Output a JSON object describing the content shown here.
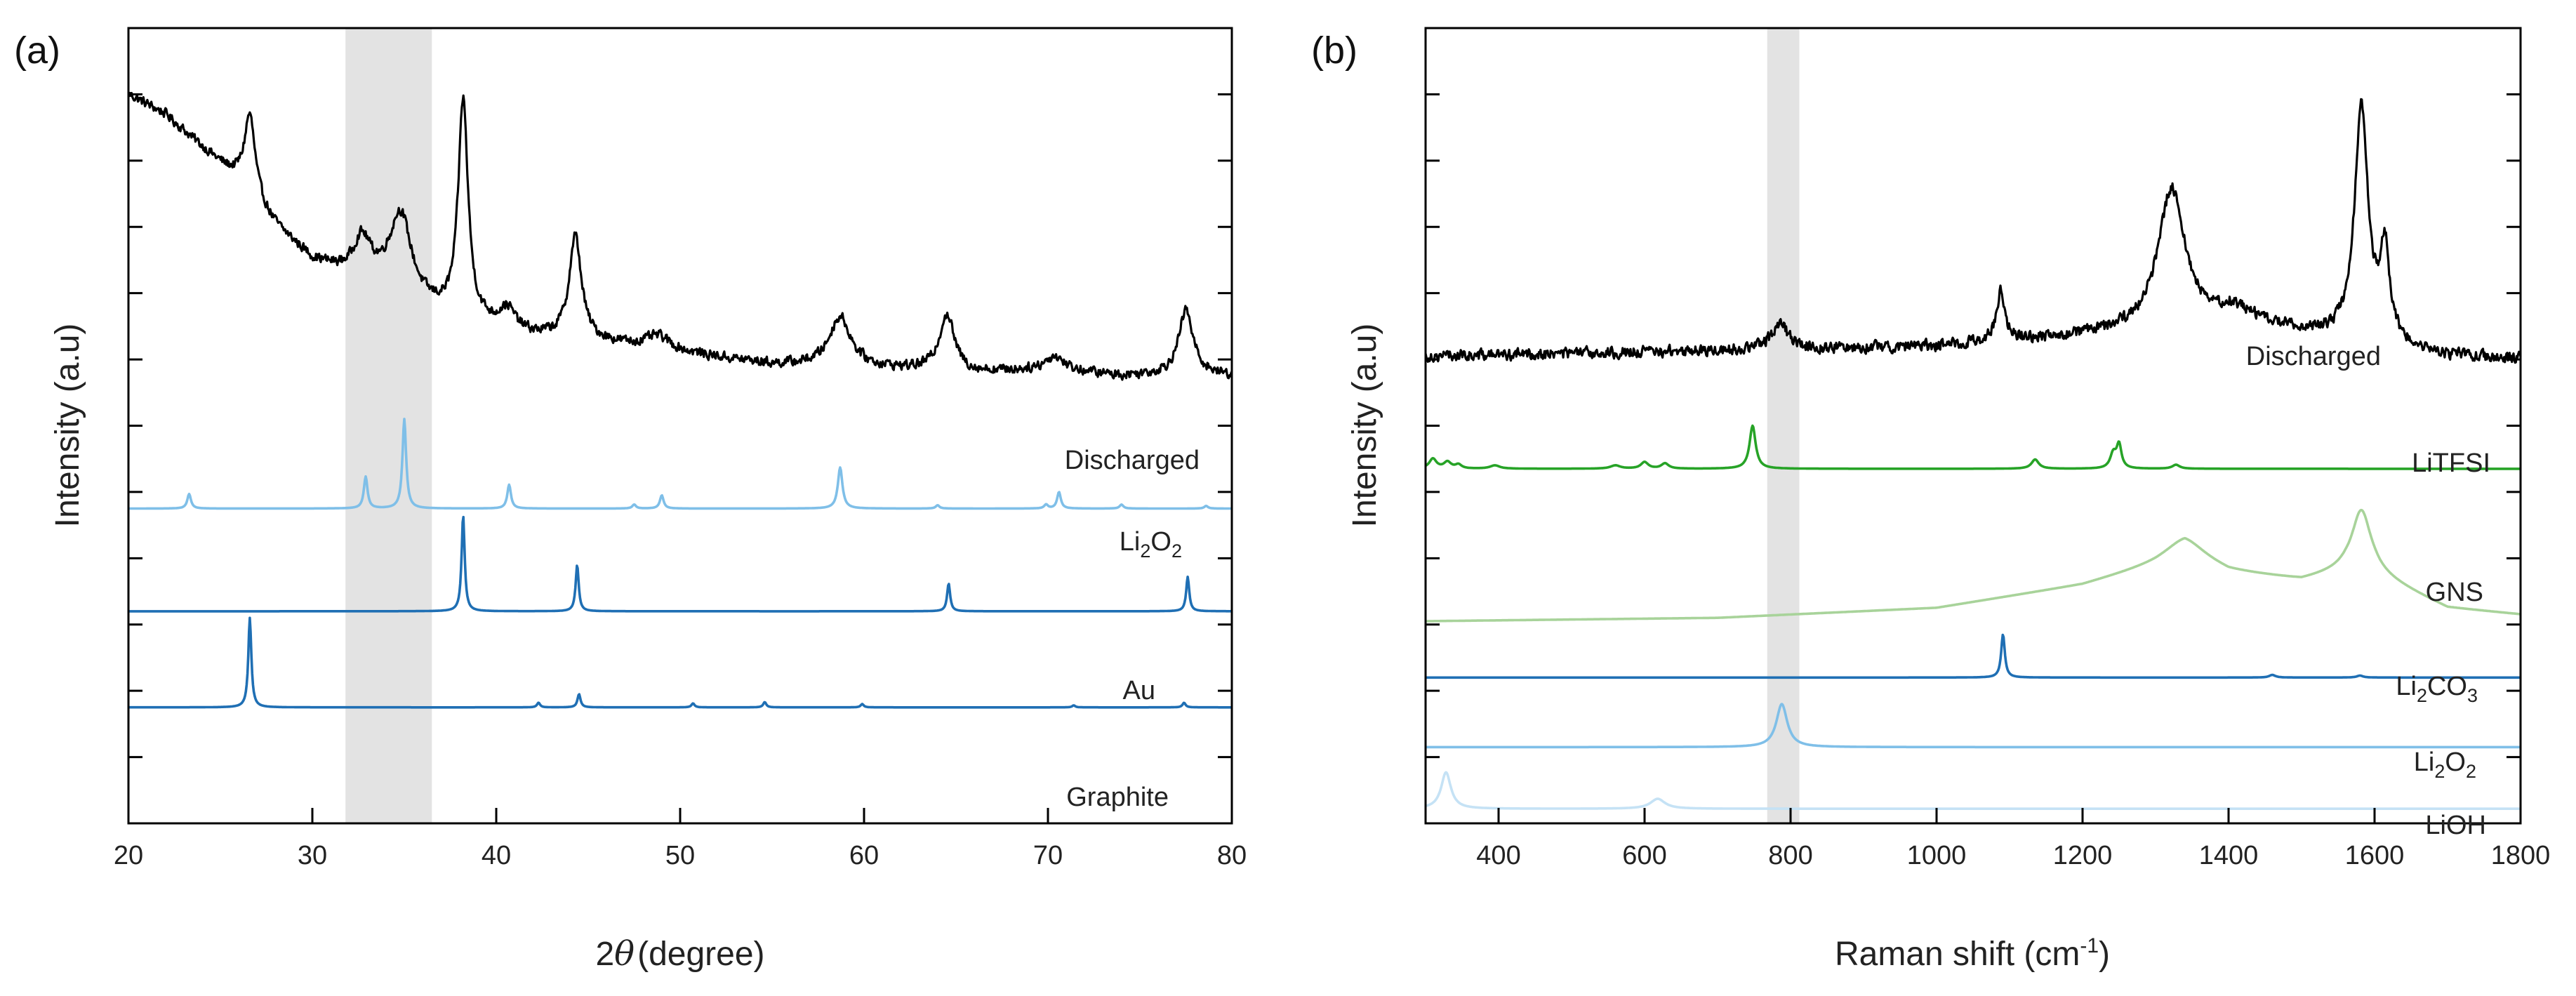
{
  "chart_data": [
    {
      "type": "line",
      "panel_label": "(a)",
      "xlabel": "2θ (degree)",
      "xlabel_theta": "θ",
      "xlabel_prefix": "2",
      "xlabel_suffix": "(degree)",
      "ylabel": "Intensity (a.u)",
      "xlim": [
        20,
        80
      ],
      "xticks": [
        20,
        30,
        40,
        50,
        60,
        70,
        80
      ],
      "yticks_count": 11,
      "highlight_band": [
        31.8,
        36.5
      ],
      "highlight_color": "#e3e3e3",
      "series": [
        {
          "name": "Discharged",
          "color": "#000000",
          "baseline": 6.8,
          "background": [
            [
              20,
              4.2
            ],
            [
              22,
              3.9
            ],
            [
              24,
              3.4
            ],
            [
              26,
              2.9
            ],
            [
              28,
              2.2
            ],
            [
              30,
              1.7
            ],
            [
              32,
              1.45
            ],
            [
              34,
              1.3
            ],
            [
              36,
              1.0
            ],
            [
              38,
              0.8
            ],
            [
              42,
              0.55
            ],
            [
              46,
              0.45
            ],
            [
              50,
              0.3
            ],
            [
              55,
              0.12
            ],
            [
              58,
              0.1
            ],
            [
              62,
              0.05
            ],
            [
              66,
              0.0
            ],
            [
              70,
              0.05
            ],
            [
              74,
              -0.05
            ],
            [
              78,
              0.0
            ],
            [
              80,
              -0.05
            ]
          ],
          "peaks": [
            {
              "x": 26.6,
              "height": 1.2,
              "width": 0.35
            },
            {
              "x": 32.7,
              "height": 0.6,
              "width": 0.6
            },
            {
              "x": 34.8,
              "height": 1.2,
              "width": 0.7
            },
            {
              "x": 38.2,
              "height": 3.3,
              "width": 0.32
            },
            {
              "x": 40.6,
              "height": 0.3,
              "width": 0.5
            },
            {
              "x": 44.3,
              "height": 1.55,
              "width": 0.4
            },
            {
              "x": 48.8,
              "height": 0.2,
              "width": 0.8
            },
            {
              "x": 58.7,
              "height": 0.75,
              "width": 0.7
            },
            {
              "x": 64.5,
              "height": 0.85,
              "width": 0.5
            },
            {
              "x": 70.4,
              "height": 0.2,
              "width": 0.6
            },
            {
              "x": 77.5,
              "height": 0.95,
              "width": 0.45
            }
          ],
          "noise": 0.06
        },
        {
          "name": "Li2O2",
          "label_main": "Li",
          "label_sub1": "2",
          "label_mid": "O",
          "label_sub2": "2",
          "color": "#7fbfe8",
          "baseline": 4.75,
          "peaks": [
            {
              "x": 23.3,
              "height": 0.22,
              "width": 0.12
            },
            {
              "x": 32.9,
              "height": 0.48,
              "width": 0.12
            },
            {
              "x": 35.0,
              "height": 1.35,
              "width": 0.12
            },
            {
              "x": 40.7,
              "height": 0.36,
              "width": 0.12
            },
            {
              "x": 47.5,
              "height": 0.06,
              "width": 0.12
            },
            {
              "x": 49.0,
              "height": 0.2,
              "width": 0.12
            },
            {
              "x": 58.7,
              "height": 0.62,
              "width": 0.15
            },
            {
              "x": 64.0,
              "height": 0.05,
              "width": 0.12
            },
            {
              "x": 69.9,
              "height": 0.06,
              "width": 0.12
            },
            {
              "x": 70.6,
              "height": 0.25,
              "width": 0.12
            },
            {
              "x": 74.0,
              "height": 0.06,
              "width": 0.12
            },
            {
              "x": 78.6,
              "height": 0.04,
              "width": 0.12
            }
          ],
          "noise": 0
        },
        {
          "name": "Au",
          "color": "#1f6fb4",
          "baseline": 3.2,
          "peaks": [
            {
              "x": 38.2,
              "height": 1.45,
              "width": 0.1
            },
            {
              "x": 44.4,
              "height": 0.7,
              "width": 0.1
            },
            {
              "x": 64.6,
              "height": 0.42,
              "width": 0.1
            },
            {
              "x": 77.6,
              "height": 0.52,
              "width": 0.1
            }
          ],
          "noise": 0
        },
        {
          "name": "Graphite",
          "color": "#1f6fb4",
          "baseline": 1.75,
          "peaks": [
            {
              "x": 26.6,
              "height": 1.35,
              "width": 0.1
            },
            {
              "x": 42.3,
              "height": 0.07,
              "width": 0.1
            },
            {
              "x": 44.5,
              "height": 0.2,
              "width": 0.1
            },
            {
              "x": 50.7,
              "height": 0.06,
              "width": 0.1
            },
            {
              "x": 54.6,
              "height": 0.08,
              "width": 0.1
            },
            {
              "x": 59.9,
              "height": 0.05,
              "width": 0.1
            },
            {
              "x": 71.4,
              "height": 0.03,
              "width": 0.1
            },
            {
              "x": 77.4,
              "height": 0.07,
              "width": 0.1
            }
          ],
          "noise": 0
        }
      ]
    },
    {
      "type": "line",
      "panel_label": "(b)",
      "xlabel": "Raman shift (cm-1)",
      "xlabel_main": "Raman shift (cm",
      "xlabel_sup": "-1",
      "xlabel_end": ")",
      "ylabel": "Intensity (a.u)",
      "xlim": [
        300,
        1800
      ],
      "xticks": [
        400,
        600,
        800,
        1000,
        1200,
        1400,
        1600,
        1800
      ],
      "yticks_count": 11,
      "highlight_band": [
        768,
        812
      ],
      "highlight_color": "#e3e3e3",
      "series": [
        {
          "name": "Discharged",
          "color": "#000000",
          "baseline": 7.05,
          "background": [
            [
              300,
              0.0
            ],
            [
              800,
              0.1
            ],
            [
              1000,
              0.15
            ],
            [
              1200,
              0.3
            ],
            [
              1400,
              0.5
            ],
            [
              1500,
              0.35
            ],
            [
              1700,
              0.0
            ],
            [
              1800,
              -0.05
            ]
          ],
          "peaks": [
            {
              "x": 785,
              "height": 0.4,
              "width": 14
            },
            {
              "x": 1088,
              "height": 0.75,
              "width": 7
            },
            {
              "x": 1322,
              "height": 2.1,
              "width": 22
            },
            {
              "x": 1410,
              "height": 0.2,
              "width": 30
            },
            {
              "x": 1582,
              "height": 3.55,
              "width": 11
            },
            {
              "x": 1614,
              "height": 1.35,
              "width": 8
            }
          ],
          "noise": 0.07
        },
        {
          "name": "LiTFSI",
          "color": "#27a327",
          "baseline": 5.35,
          "peaks": [
            {
              "x": 310,
              "height": 0.15,
              "width": 6
            },
            {
              "x": 330,
              "height": 0.1,
              "width": 6
            },
            {
              "x": 345,
              "height": 0.06,
              "width": 5
            },
            {
              "x": 395,
              "height": 0.05,
              "width": 8
            },
            {
              "x": 560,
              "height": 0.05,
              "width": 8
            },
            {
              "x": 600,
              "height": 0.1,
              "width": 6
            },
            {
              "x": 628,
              "height": 0.08,
              "width": 6
            },
            {
              "x": 748,
              "height": 0.65,
              "width": 5
            },
            {
              "x": 1135,
              "height": 0.14,
              "width": 6
            },
            {
              "x": 1242,
              "height": 0.22,
              "width": 5
            },
            {
              "x": 1250,
              "height": 0.35,
              "width": 4
            },
            {
              "x": 1328,
              "height": 0.06,
              "width": 6
            }
          ],
          "noise": 0
        },
        {
          "name": "GNS",
          "color": "#a8d39a",
          "baseline": 3.05,
          "background": [
            [
              300,
              0.0
            ],
            [
              700,
              0.05
            ],
            [
              1000,
              0.2
            ],
            [
              1200,
              0.55
            ],
            [
              1300,
              0.85
            ],
            [
              1340,
              1.0
            ],
            [
              1400,
              0.75
            ],
            [
              1500,
              0.62
            ],
            [
              1560,
              0.75
            ],
            [
              1600,
              0.7
            ],
            [
              1700,
              0.2
            ],
            [
              1800,
              0.1
            ]
          ],
          "peaks": [
            {
              "x": 1340,
              "height": 0.25,
              "width": 35
            },
            {
              "x": 1582,
              "height": 0.95,
              "width": 16
            }
          ],
          "noise": 0
        },
        {
          "name": "Li2CO3",
          "label_main": "Li",
          "label_sub1": "2",
          "label_mid": "CO",
          "label_sub2": "3",
          "color": "#1f6fb4",
          "baseline": 2.2,
          "peaks": [
            {
              "x": 1091,
              "height": 0.65,
              "width": 3
            },
            {
              "x": 1460,
              "height": 0.04,
              "width": 5
            },
            {
              "x": 1580,
              "height": 0.03,
              "width": 5
            }
          ],
          "noise": 0
        },
        {
          "name": "Li2O2",
          "label_main": "Li",
          "label_sub1": "2",
          "label_mid": "O",
          "label_sub2": "2",
          "color": "#7fbfe8",
          "baseline": 1.15,
          "peaks": [
            {
              "x": 788,
              "height": 0.65,
              "width": 9
            }
          ],
          "noise": 0
        },
        {
          "name": "LiOH",
          "color": "#c5e2f5",
          "baseline": 0.22,
          "peaks": [
            {
              "x": 328,
              "height": 0.55,
              "width": 8
            },
            {
              "x": 618,
              "height": 0.15,
              "width": 12
            }
          ],
          "noise": 0
        }
      ]
    }
  ]
}
